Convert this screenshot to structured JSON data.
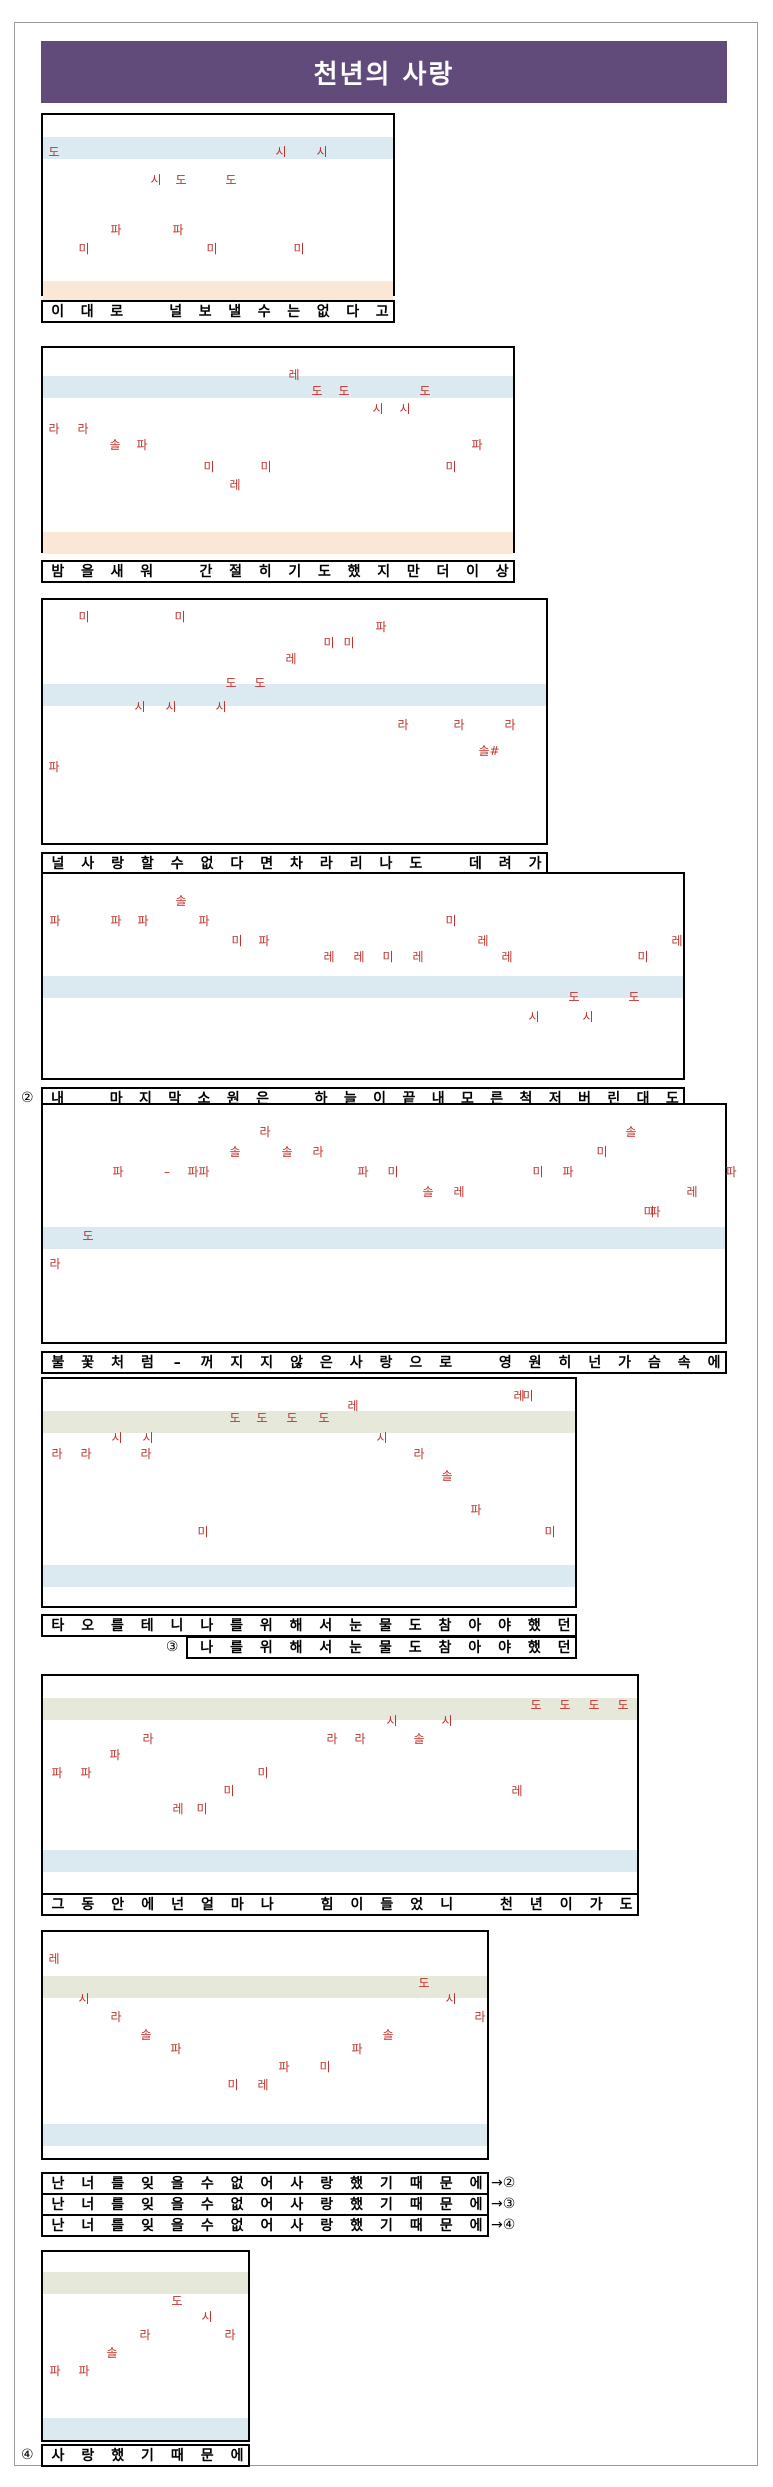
{
  "title": "천년의 사랑",
  "systems": [
    {
      "lyric_lines": [
        {
          "prefix": "",
          "suffix": "",
          "syllables": [
            "이",
            "대",
            "로",
            "",
            "널",
            "보",
            "낼",
            "수",
            "는",
            "없",
            "다",
            "고"
          ]
        }
      ],
      "notes": [
        "도",
        "시",
        "시",
        "시",
        "도",
        "도",
        "파",
        "파",
        "미",
        "미",
        "미"
      ]
    },
    {
      "lyric_lines": [
        {
          "prefix": "",
          "suffix": "",
          "syllables": [
            "밤",
            "을",
            "새",
            "워",
            "",
            "간",
            "절",
            "히",
            "기",
            "도",
            "했",
            "지",
            "만",
            "더",
            "이",
            "상"
          ]
        }
      ],
      "notes": [
        "레",
        "도",
        "도",
        "도",
        "시",
        "시",
        "라",
        "라",
        "솔",
        "파",
        "파",
        "미",
        "미",
        "미",
        "레"
      ]
    },
    {
      "lyric_lines": [
        {
          "prefix": "",
          "suffix": "",
          "syllables": [
            "널",
            "사",
            "랑",
            "할",
            "수",
            "없",
            "다",
            "면",
            "차",
            "라",
            "리",
            "나",
            "도",
            "",
            "데",
            "려",
            "가"
          ]
        }
      ],
      "notes": [
        "파",
        "미",
        "미",
        "레",
        "도",
        "도",
        "시",
        "시",
        "시",
        "라",
        "라",
        "라",
        "솔#",
        "파",
        "미",
        "미"
      ]
    },
    {
      "lyric_lines": [
        {
          "prefix": "②",
          "suffix": "",
          "syllables": [
            "내",
            "",
            "마",
            "지",
            "막",
            "소",
            "원",
            "은",
            "",
            "하",
            "늘",
            "이",
            "끝",
            "내",
            "모",
            "른",
            "척",
            "저",
            "버",
            "린",
            "대",
            "도"
          ]
        }
      ],
      "notes": [
        "솔",
        "파",
        "파",
        "파",
        "파",
        "미",
        "미",
        "파",
        "레",
        "레",
        "레",
        "레",
        "미",
        "레",
        "레",
        "미",
        "도",
        "도",
        "시",
        "시"
      ]
    },
    {
      "lyric_lines": [
        {
          "prefix": "",
          "suffix": "",
          "syllables": [
            "불",
            "꽃",
            "처",
            "럼",
            "–",
            "꺼",
            "지",
            "지",
            "않",
            "은",
            "사",
            "랑",
            "으",
            "로",
            "",
            "영",
            "원",
            "히",
            "넌",
            "가",
            "슴",
            "속",
            "에"
          ]
        }
      ],
      "notes": [
        "라",
        "솔",
        "솔",
        "솔",
        "라",
        "미",
        "파",
        "–",
        "파",
        "파",
        "파",
        "미",
        "미",
        "파",
        "파",
        "솔",
        "레",
        "레",
        "미",
        "파",
        "도",
        "라"
      ]
    },
    {
      "lyric_lines": [
        {
          "prefix": "",
          "suffix": "",
          "syllables": [
            "타",
            "오",
            "를",
            "테",
            "니",
            "나",
            "를",
            "위",
            "해",
            "서",
            "눈",
            "물",
            "도",
            "참",
            "아",
            "야",
            "했",
            "던"
          ]
        },
        {
          "prefix": "③",
          "suffix": "",
          "syllables": [
            "",
            "",
            "",
            "",
            "",
            "나",
            "를",
            "위",
            "해",
            "서",
            "눈",
            "물",
            "도",
            "참",
            "아",
            "야",
            "했",
            "던"
          ]
        }
      ],
      "notes": [
        "레",
        "도",
        "도",
        "도",
        "도",
        "시",
        "시",
        "시",
        "라",
        "라",
        "라",
        "라",
        "솔",
        "파",
        "미",
        "미",
        "미",
        "레"
      ]
    },
    {
      "lyric_lines": [
        {
          "prefix": "",
          "suffix": "",
          "syllables": [
            "그",
            "동",
            "안",
            "에",
            "넌",
            "얼",
            "마",
            "나",
            "",
            "힘",
            "이",
            "들",
            "었",
            "니",
            "",
            "천",
            "년",
            "이",
            "가",
            "도"
          ]
        }
      ],
      "notes": [
        "도",
        "도",
        "도",
        "도",
        "시",
        "시",
        "라",
        "라",
        "라",
        "솔",
        "파",
        "파",
        "파",
        "미",
        "미",
        "레",
        "레",
        "미"
      ]
    },
    {
      "lyric_lines": [
        {
          "prefix": "",
          "suffix": "→②",
          "syllables": [
            "난",
            "너",
            "를",
            "잊",
            "을",
            "수",
            "없",
            "어",
            "사",
            "랑",
            "했",
            "기",
            "때",
            "문",
            "에"
          ]
        },
        {
          "prefix": "",
          "suffix": "→③",
          "syllables": [
            "난",
            "너",
            "를",
            "잊",
            "을",
            "수",
            "없",
            "어",
            "사",
            "랑",
            "했",
            "기",
            "때",
            "문",
            "에"
          ]
        },
        {
          "prefix": "",
          "suffix": "→④",
          "syllables": [
            "난",
            "너",
            "를",
            "잊",
            "을",
            "수",
            "없",
            "어",
            "사",
            "랑",
            "했",
            "기",
            "때",
            "문",
            "에"
          ]
        }
      ],
      "notes": [
        "레",
        "도",
        "시",
        "시",
        "라",
        "라",
        "솔",
        "솔",
        "파",
        "파",
        "파",
        "미",
        "미",
        "레"
      ]
    },
    {
      "lyric_lines": [
        {
          "prefix": "④",
          "suffix": "",
          "syllables": [
            "사",
            "랑",
            "했",
            "기",
            "때",
            "문",
            "에"
          ]
        }
      ],
      "notes": [
        "도",
        "시",
        "라",
        "라",
        "솔",
        "파",
        "파"
      ]
    }
  ],
  "colors": {
    "title_bar": "#614b7b",
    "note": "#c0312b",
    "band_blue": "#dbe9f0",
    "band_peach": "#fbe7d6",
    "band_olive": "#e6e9da"
  }
}
